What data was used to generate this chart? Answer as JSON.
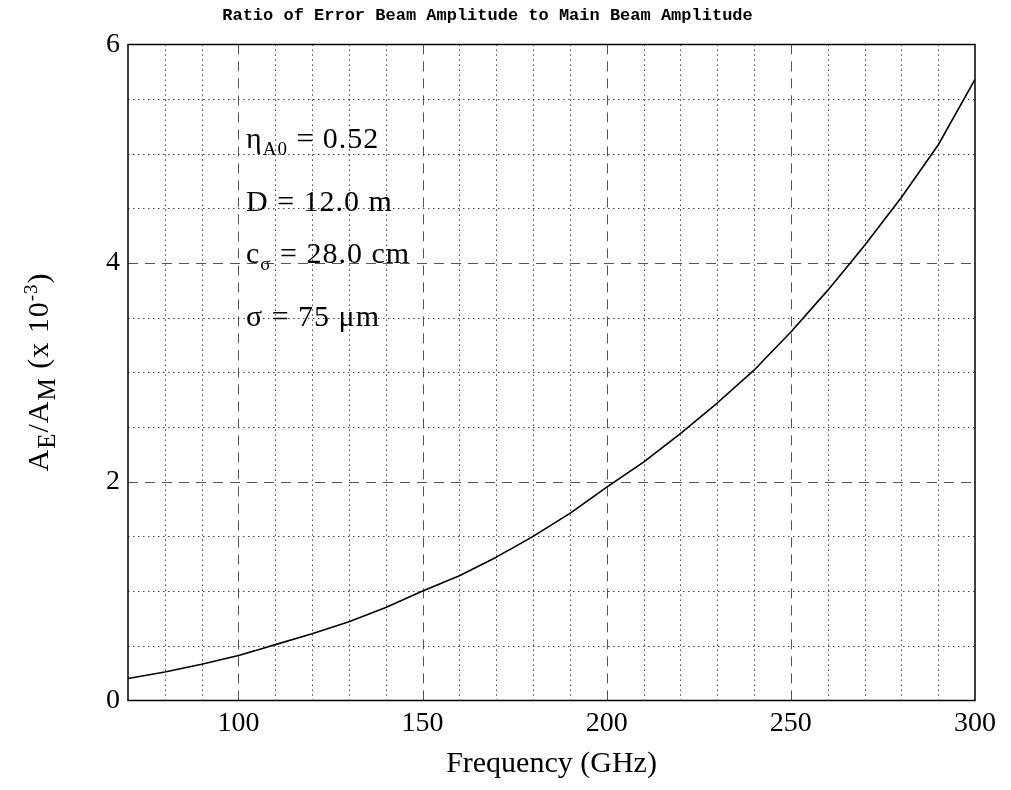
{
  "chart_data": {
    "type": "line",
    "title": "Ratio of Error Beam Amplitude to Main Beam Amplitude",
    "xlabel": "Frequency (GHz)",
    "ylabel": "A$_{E}$/A$_{M}$ (x 10$^{-3}$)",
    "x": [
      70,
      80,
      90,
      100,
      110,
      120,
      130,
      140,
      150,
      160,
      170,
      180,
      190,
      200,
      210,
      220,
      230,
      240,
      250,
      260,
      270,
      280,
      290,
      300
    ],
    "series": [
      {
        "color": "#000000",
        "values": [
          0.2,
          0.26,
          0.33,
          0.41,
          0.51,
          0.61,
          0.72,
          0.85,
          1.0,
          1.14,
          1.31,
          1.5,
          1.71,
          1.95,
          2.18,
          2.44,
          2.72,
          3.02,
          3.37,
          3.75,
          4.16,
          4.6,
          5.08,
          5.68
        ]
      }
    ],
    "xlim": [
      70,
      300
    ],
    "ylim": [
      0,
      6
    ],
    "xticks": [
      {
        "value": 70,
        "label": null
      },
      {
        "value": 80,
        "label": null
      },
      {
        "value": 90,
        "label": null
      },
      100,
      {
        "value": 110,
        "label": null
      },
      {
        "value": 120,
        "label": null
      },
      {
        "value": 130,
        "label": null
      },
      {
        "value": 140,
        "label": null
      },
      150,
      {
        "value": 160,
        "label": null
      },
      {
        "value": 170,
        "label": null
      },
      {
        "value": 180,
        "label": null
      },
      {
        "value": 190,
        "label": null
      },
      200,
      {
        "value": 210,
        "label": null
      },
      {
        "value": 220,
        "label": null
      },
      {
        "value": 230,
        "label": null
      },
      {
        "value": 240,
        "label": null
      },
      250,
      {
        "value": 260,
        "label": null
      },
      {
        "value": 270,
        "label": null
      },
      {
        "value": 280,
        "label": null
      },
      {
        "value": 290,
        "label": null
      },
      300
    ],
    "yticks": [
      0,
      {
        "value": 0.5,
        "label": null
      },
      {
        "value": 1,
        "label": null
      },
      {
        "value": 1.5,
        "label": null
      },
      2,
      {
        "value": 2.5,
        "label": null
      },
      {
        "value": 3,
        "label": null
      },
      {
        "value": 3.5,
        "label": null
      },
      4,
      {
        "value": 4.5,
        "label": null
      },
      {
        "value": 5,
        "label": null
      },
      {
        "value": 5.5,
        "label": null
      },
      6
    ],
    "grid": true,
    "marker": "none",
    "line_style": "solid",
    "annotations": [
      "η$_{A0}$ = 0.52",
      "D = 12.0 m",
      "c$_{σ}$ = 28.0 cm",
      "σ = 75 μm"
    ]
  }
}
